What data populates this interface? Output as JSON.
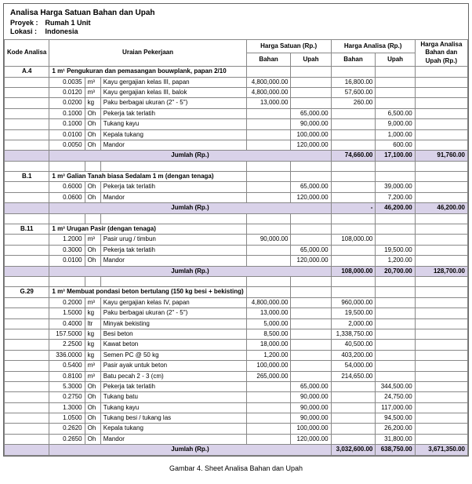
{
  "header": {
    "title": "Analisa Harga Satuan Bahan dan Upah",
    "proyek_label": "Proyek :",
    "proyek_value": "Rumah 1 Unit",
    "lokasi_label": "Lokasi :",
    "lokasi_value": "Indonesia"
  },
  "columns": {
    "kode": "Kode Analisa",
    "uraian": "Uraian Pekerjaan",
    "harga_satuan": "Harga Satuan (Rp.)",
    "harga_analisa": "Harga Analisa (Rp.)",
    "harga_total": "Harga Analisa Bahan dan Upah (Rp.)",
    "bahan": "Bahan",
    "upah": "Upah"
  },
  "jumlah_label": "Jumlah (Rp.)",
  "sections": [
    {
      "code": "A.4",
      "title": "1 m¹ Pengukuran dan pemasangan bouwplank, papan 2/10",
      "rows": [
        {
          "q": "0.0035",
          "u": "m³",
          "d": "Kayu gergajian kelas III, papan",
          "b": "4,800,000.00",
          "up": "",
          "ab": "16,800.00",
          "au": "",
          "t": ""
        },
        {
          "q": "0.0120",
          "u": "m³",
          "d": "Kayu gergajian kelas III, balok",
          "b": "4,800,000.00",
          "up": "",
          "ab": "57,600.00",
          "au": "",
          "t": ""
        },
        {
          "q": "0.0200",
          "u": "kg",
          "d": "Paku berbagai ukuran (2\" - 5\")",
          "b": "13,000.00",
          "up": "",
          "ab": "260.00",
          "au": "",
          "t": ""
        },
        {
          "q": "0.1000",
          "u": "Oh",
          "d": "Pekerja tak terlatih",
          "b": "",
          "up": "65,000.00",
          "ab": "",
          "au": "6,500.00",
          "t": ""
        },
        {
          "q": "0.1000",
          "u": "Oh",
          "d": "Tukang kayu",
          "b": "",
          "up": "90,000.00",
          "ab": "",
          "au": "9,000.00",
          "t": ""
        },
        {
          "q": "0.0100",
          "u": "Oh",
          "d": "Kepala tukang",
          "b": "",
          "up": "100,000.00",
          "ab": "",
          "au": "1,000.00",
          "t": ""
        },
        {
          "q": "0.0050",
          "u": "Oh",
          "d": "Mandor",
          "b": "",
          "up": "120,000.00",
          "ab": "",
          "au": "600.00",
          "t": ""
        }
      ],
      "subtotal": {
        "ab": "74,660.00",
        "au": "17,100.00",
        "t": "91,760.00"
      }
    },
    {
      "code": "B.1",
      "title": "1 m³ Galian Tanah biasa Sedalam 1 m (dengan tenaga)",
      "rows": [
        {
          "q": "0.6000",
          "u": "Oh",
          "d": "Pekerja tak terlatih",
          "b": "",
          "up": "65,000.00",
          "ab": "",
          "au": "39,000.00",
          "t": ""
        },
        {
          "q": "0.0600",
          "u": "Oh",
          "d": "Mandor",
          "b": "",
          "up": "120,000.00",
          "ab": "",
          "au": "7,200.00",
          "t": ""
        }
      ],
      "subtotal": {
        "ab": "-",
        "au": "46,200.00",
        "t": "46,200.00"
      }
    },
    {
      "code": "B.11",
      "title": "1 m³ Urugan Pasir (dengan tenaga)",
      "rows": [
        {
          "q": "1.2000",
          "u": "m³",
          "d": "Pasir urug / timbun",
          "b": "90,000.00",
          "up": "",
          "ab": "108,000.00",
          "au": "",
          "t": ""
        },
        {
          "q": "0.3000",
          "u": "Oh",
          "d": "Pekerja tak terlatih",
          "b": "",
          "up": "65,000.00",
          "ab": "",
          "au": "19,500.00",
          "t": ""
        },
        {
          "q": "0.0100",
          "u": "Oh",
          "d": "Mandor",
          "b": "",
          "up": "120,000.00",
          "ab": "",
          "au": "1,200.00",
          "t": ""
        }
      ],
      "subtotal": {
        "ab": "108,000.00",
        "au": "20,700.00",
        "t": "128,700.00"
      }
    },
    {
      "code": "G.29",
      "title": "1 m³ Membuat pondasi beton bertulang (150 kg besi + bekisting)",
      "rows": [
        {
          "q": "0.2000",
          "u": "m³",
          "d": "Kayu gergajian kelas IV, papan",
          "b": "4,800,000.00",
          "up": "",
          "ab": "960,000.00",
          "au": "",
          "t": ""
        },
        {
          "q": "1.5000",
          "u": "kg",
          "d": "Paku berbagai ukuran (2\" - 5\")",
          "b": "13,000.00",
          "up": "",
          "ab": "19,500.00",
          "au": "",
          "t": ""
        },
        {
          "q": "0.4000",
          "u": "ltr",
          "d": "Minyak bekisting",
          "b": "5,000.00",
          "up": "",
          "ab": "2,000.00",
          "au": "",
          "t": ""
        },
        {
          "q": "157.5000",
          "u": "kg",
          "d": "Besi beton",
          "b": "8,500.00",
          "up": "",
          "ab": "1,338,750.00",
          "au": "",
          "t": ""
        },
        {
          "q": "2.2500",
          "u": "kg",
          "d": "Kawat beton",
          "b": "18,000.00",
          "up": "",
          "ab": "40,500.00",
          "au": "",
          "t": ""
        },
        {
          "q": "336.0000",
          "u": "kg",
          "d": "Semen PC @ 50 kg",
          "b": "1,200.00",
          "up": "",
          "ab": "403,200.00",
          "au": "",
          "t": ""
        },
        {
          "q": "0.5400",
          "u": "m³",
          "d": "Pasir ayak untuk beton",
          "b": "100,000.00",
          "up": "",
          "ab": "54,000.00",
          "au": "",
          "t": ""
        },
        {
          "q": "0.8100",
          "u": "m³",
          "d": "Batu pecah 2 - 3 (cm)",
          "b": "265,000.00",
          "up": "",
          "ab": "214,650.00",
          "au": "",
          "t": ""
        },
        {
          "q": "5.3000",
          "u": "Oh",
          "d": "Pekerja tak terlatih",
          "b": "",
          "up": "65,000.00",
          "ab": "",
          "au": "344,500.00",
          "t": ""
        },
        {
          "q": "0.2750",
          "u": "Oh",
          "d": "Tukang batu",
          "b": "",
          "up": "90,000.00",
          "ab": "",
          "au": "24,750.00",
          "t": ""
        },
        {
          "q": "1.3000",
          "u": "Oh",
          "d": "Tukang kayu",
          "b": "",
          "up": "90,000.00",
          "ab": "",
          "au": "117,000.00",
          "t": ""
        },
        {
          "q": "1.0500",
          "u": "Oh",
          "d": "Tukang besi / tukang las",
          "b": "",
          "up": "90,000.00",
          "ab": "",
          "au": "94,500.00",
          "t": ""
        },
        {
          "q": "0.2620",
          "u": "Oh",
          "d": "Kepala tukang",
          "b": "",
          "up": "100,000.00",
          "ab": "",
          "au": "26,200.00",
          "t": ""
        },
        {
          "q": "0.2650",
          "u": "Oh",
          "d": "Mandor",
          "b": "",
          "up": "120,000.00",
          "ab": "",
          "au": "31,800.00",
          "t": ""
        }
      ],
      "subtotal": {
        "ab": "3,032,600.00",
        "au": "638,750.00",
        "t": "3,671,350.00"
      }
    }
  ],
  "caption": "Gambar 4. Sheet Analisa Bahan dan Upah"
}
